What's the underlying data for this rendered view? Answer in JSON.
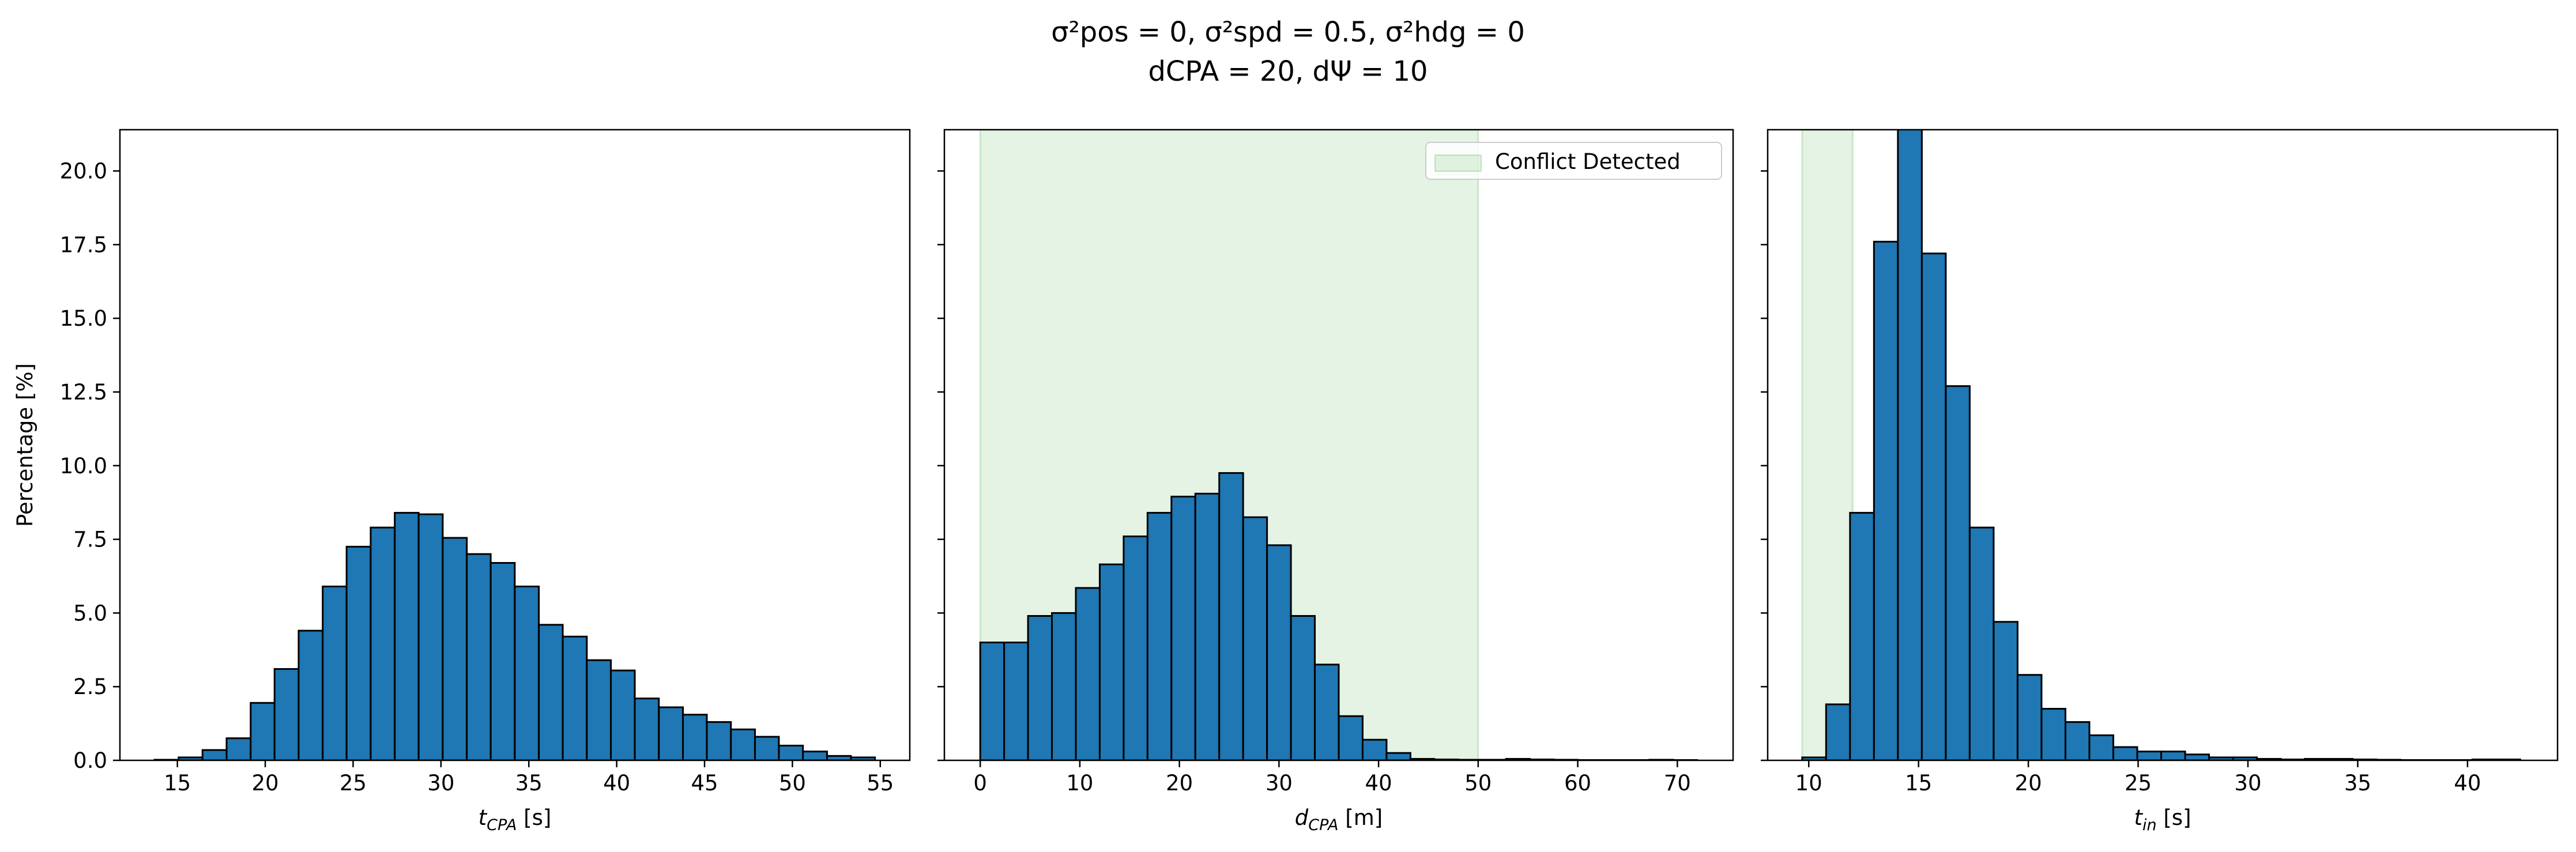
{
  "suptitle": [
    "σ²pos = 0, σ²spd = 0.5, σ²hdg = 0",
    "dCPA = 20, dΨ = 10"
  ],
  "chart_data": [
    {
      "type": "histogram",
      "color": "#1f77b4",
      "xlabel": {
        "main": "t",
        "sub": "CPA",
        "rest": " [s]"
      },
      "ylabel": "Percentage [%]",
      "bins": [
        13.7,
        15.07,
        16.43,
        17.8,
        19.17,
        20.53,
        21.9,
        23.27,
        24.63,
        26.0,
        27.37,
        28.73,
        30.1,
        31.47,
        32.83,
        34.2,
        35.57,
        36.93,
        38.3,
        39.67,
        41.03,
        42.4,
        43.77,
        45.13,
        46.5,
        47.87,
        49.23,
        50.6,
        51.97,
        53.33,
        54.7
      ],
      "values": [
        0.02,
        0.1,
        0.35,
        0.75,
        1.95,
        3.1,
        4.4,
        5.9,
        7.25,
        7.9,
        8.4,
        8.35,
        7.55,
        7.0,
        6.7,
        5.9,
        4.6,
        4.2,
        3.4,
        3.05,
        2.1,
        1.8,
        1.55,
        1.3,
        1.05,
        0.8,
        0.5,
        0.3,
        0.15,
        0.1
      ],
      "xlim": [
        11.73,
        56.68
      ],
      "xticks": [
        15,
        20,
        25,
        30,
        35,
        40,
        45,
        50,
        55
      ],
      "ylim": [
        0,
        21.4
      ],
      "yticks": [
        {
          "value": 0,
          "label": "0.0"
        },
        2.5,
        {
          "value": 5,
          "label": "5.0"
        },
        7.5,
        {
          "value": 10,
          "label": "10.0"
        },
        12.5,
        {
          "value": 15,
          "label": "15.0"
        },
        17.5,
        {
          "value": 20,
          "label": "20.0"
        }
      ]
    },
    {
      "type": "histogram",
      "color": "#1f77b4",
      "xlabel": {
        "main": "d",
        "sub": "CPA",
        "rest": " [m]"
      },
      "bins": [
        0,
        2.4,
        4.8,
        7.2,
        9.6,
        12,
        14.4,
        16.8,
        19.2,
        21.6,
        24,
        26.4,
        28.8,
        31.2,
        33.6,
        36,
        38.4,
        40.8,
        43.2,
        45.6,
        48,
        50.4,
        52.8,
        55.2,
        57.6,
        60,
        62.4,
        64.8,
        67.2,
        69.6,
        72
      ],
      "values": [
        4.0,
        4.0,
        4.9,
        5.0,
        5.85,
        6.65,
        7.6,
        8.4,
        8.95,
        9.05,
        9.75,
        8.25,
        7.3,
        4.9,
        3.25,
        1.5,
        0.7,
        0.25,
        0.05,
        0.03,
        0.02,
        0.02,
        0.05,
        0.03,
        0.02,
        0.01,
        0.01,
        0.01,
        0.02,
        0.01
      ],
      "xlim": [
        -3.6,
        75.6
      ],
      "xticks": [
        0,
        10,
        20,
        30,
        40,
        50,
        60,
        70
      ],
      "ylim": [
        0,
        21.4
      ],
      "yticks": [
        0,
        2.5,
        5,
        7.5,
        10,
        12.5,
        15,
        17.5,
        20
      ],
      "span": [
        0,
        50
      ],
      "span_color": "#2ca02c",
      "legend": {
        "label": "Conflict Detected",
        "loc": "upper right"
      }
    },
    {
      "type": "histogram",
      "color": "#1f77b4",
      "xlabel": {
        "main": "t",
        "sub": "in",
        "rest": " [s]"
      },
      "bins": [
        9.7,
        10.79,
        11.88,
        12.97,
        14.06,
        15.15,
        16.24,
        17.33,
        18.42,
        19.51,
        20.6,
        21.69,
        22.78,
        23.87,
        24.96,
        26.05,
        27.14,
        28.23,
        29.32,
        30.41,
        31.5,
        32.59,
        33.68,
        34.77,
        35.86,
        36.95,
        38.04,
        39.13,
        40.22,
        41.31,
        42.4
      ],
      "values": [
        0.1,
        1.9,
        8.4,
        17.6,
        22.5,
        17.2,
        12.7,
        7.9,
        4.7,
        2.9,
        1.75,
        1.3,
        0.85,
        0.45,
        0.3,
        0.3,
        0.2,
        0.1,
        0.1,
        0.05,
        0.03,
        0.05,
        0.05,
        0.03,
        0.02,
        0.01,
        0.01,
        0.01,
        0.03,
        0.03
      ],
      "xlim": [
        8.13,
        44.1
      ],
      "xticks": [
        10,
        15,
        20,
        25,
        30,
        35,
        40
      ],
      "ylim": [
        0,
        21.4
      ],
      "yticks": [
        0,
        2.5,
        5,
        7.5,
        10,
        12.5,
        15,
        17.5,
        20
      ],
      "span": [
        9.7,
        12.0
      ],
      "span_color": "#2ca02c"
    }
  ]
}
